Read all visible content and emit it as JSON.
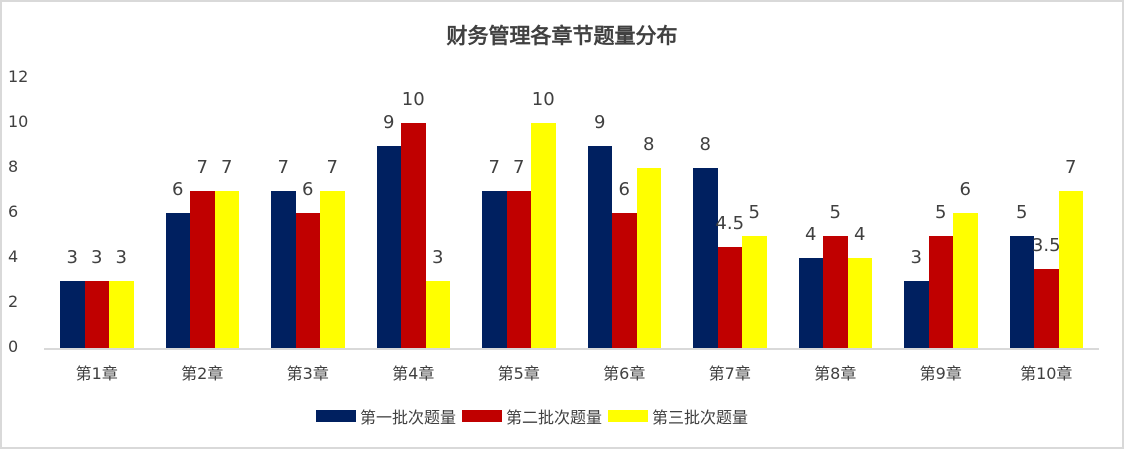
{
  "chart_data": {
    "type": "bar",
    "title": "财务管理各章节题量分布",
    "xlabel": "",
    "ylabel": "",
    "ylim": [
      0,
      12
    ],
    "yticks": [
      0,
      2,
      4,
      6,
      8,
      10,
      12
    ],
    "grid": false,
    "legend_position": "bottom",
    "categories": [
      "第1章",
      "第2章",
      "第3章",
      "第4章",
      "第5章",
      "第6章",
      "第7章",
      "第8章",
      "第9章",
      "第10章"
    ],
    "series": [
      {
        "name": "第一批次题量",
        "color": "#002060",
        "values": [
          3,
          6,
          7,
          9,
          7,
          9,
          8,
          4,
          3,
          5
        ]
      },
      {
        "name": "第二批次题量",
        "color": "#C00000",
        "values": [
          3,
          7,
          6,
          10,
          7,
          6,
          4.5,
          5,
          5,
          3.5
        ]
      },
      {
        "name": "第三批次题量",
        "color": "#FFFF00",
        "values": [
          3,
          7,
          7,
          3,
          10,
          8,
          5,
          4,
          6,
          7
        ]
      }
    ]
  }
}
